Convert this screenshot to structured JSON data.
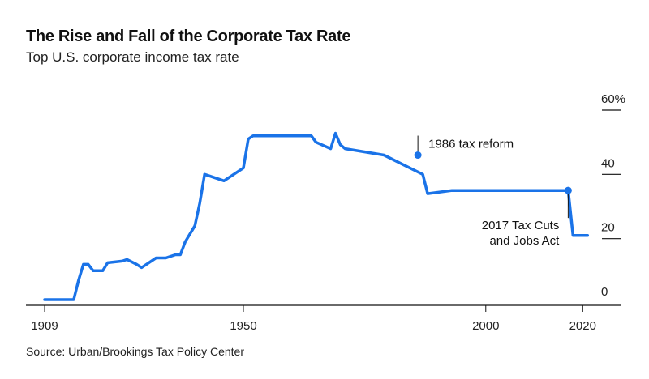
{
  "header": {
    "title": "The Rise and Fall of the Corporate Tax Rate",
    "subtitle": "Top U.S. corporate income tax rate"
  },
  "footer": {
    "source": "Source: Urban/Brookings Tax Policy Center"
  },
  "colors": {
    "line": "#1a73e8",
    "axis": "#111111",
    "text": "#222222"
  },
  "chart_data": {
    "type": "line",
    "title": "The Rise and Fall of the Corporate Tax Rate",
    "subtitle": "Top U.S. corporate income tax rate",
    "xlabel": "",
    "ylabel": "",
    "xlim": [
      1909,
      2022
    ],
    "ylim": [
      0,
      60
    ],
    "x_ticks": [
      1909,
      1950,
      2000,
      2020
    ],
    "x_tick_labels": [
      "1909",
      "1950",
      "2000",
      "2020"
    ],
    "y_ticks": [
      0,
      20,
      40,
      60
    ],
    "y_tick_labels": [
      "0",
      "20",
      "40",
      "60%"
    ],
    "y_axis_position": "right",
    "grid": false,
    "series": [
      {
        "x": [
          1909,
          1915,
          1916,
          1917,
          1918,
          1919,
          1921,
          1922,
          1925,
          1926,
          1928,
          1929,
          1930,
          1932,
          1934,
          1936,
          1937,
          1938,
          1940,
          1941,
          1942,
          1946,
          1950,
          1951,
          1952,
          1964,
          1965,
          1968,
          1969,
          1970,
          1971,
          1979,
          1987,
          1988,
          1993,
          2017,
          2018,
          2021
        ],
        "y": [
          1,
          1,
          7,
          12,
          12,
          10,
          10,
          12.5,
          13,
          13.5,
          12,
          11,
          12,
          14,
          14,
          15,
          15,
          19,
          24,
          31,
          40,
          38,
          42,
          51,
          52,
          52,
          50,
          48,
          52.8,
          49.2,
          48,
          46,
          40,
          34,
          35,
          35,
          21,
          21
        ]
      }
    ],
    "annotations": [
      {
        "text": "1986 tax reform",
        "x": 1986,
        "y": 46
      },
      {
        "text": "2017 Tax Cuts\nand Jobs Act",
        "x": 2017,
        "y": 35
      }
    ]
  }
}
